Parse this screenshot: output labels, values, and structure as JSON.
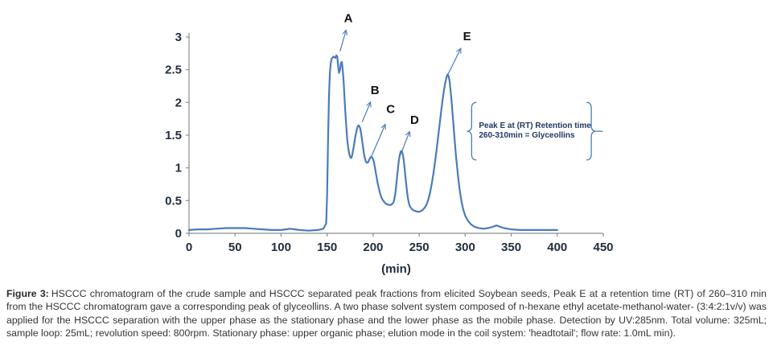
{
  "figure": {
    "caption_label": "Figure 3:",
    "caption_text": "HSCCC chromatogram of the crude sample and HSCCC separated peak fractions from elicited Soybean seeds, Peak E at a retention time (RT) of 260–310 min from the HSCCC chromatogram gave a corresponding peak of glyceollins. A two phase solvent system composed of n-hexane ethyl acetate-methanol-water- (3:4:2:1v/v) was applied for the HSCCC separation with the upper phase as the stationary phase and the lower phase as the mobile phase. Detection by UV:285nm. Total volume: 325mL; sample loop: 25mL; revolution speed: 800rpm. Stationary phase: upper organic phase; elution mode in the coil system: 'headtotail'; flow rate: 1.0mL min)."
  },
  "chart_data": {
    "type": "line",
    "title": "",
    "xlabel": "(min)",
    "ylabel": "",
    "xlim": [
      0,
      450
    ],
    "ylim": [
      0,
      3
    ],
    "xticks": [
      0,
      50,
      100,
      150,
      200,
      250,
      300,
      350,
      400,
      450
    ],
    "yticks": [
      0,
      0.5,
      1,
      1.5,
      2,
      2.5,
      3
    ],
    "grid": false,
    "legend": "none",
    "line_color": "#4a7cba",
    "axis_color": "#8c8c8c",
    "tick_label_color": "#1f2d3d",
    "annotation_text_color": "#1f3864",
    "series": [
      {
        "points": [
          [
            0,
            0.05
          ],
          [
            10,
            0.06
          ],
          [
            20,
            0.06
          ],
          [
            30,
            0.07
          ],
          [
            40,
            0.08
          ],
          [
            50,
            0.08
          ],
          [
            60,
            0.08
          ],
          [
            70,
            0.07
          ],
          [
            80,
            0.06
          ],
          [
            90,
            0.05
          ],
          [
            100,
            0.05
          ],
          [
            105,
            0.06
          ],
          [
            110,
            0.07
          ],
          [
            115,
            0.06
          ],
          [
            120,
            0.05
          ],
          [
            130,
            0.04
          ],
          [
            140,
            0.05
          ],
          [
            146,
            0.07
          ],
          [
            149,
            0.15
          ],
          [
            150,
            0.6
          ],
          [
            151,
            1.4
          ],
          [
            152,
            2.1
          ],
          [
            153,
            2.45
          ],
          [
            154,
            2.6
          ],
          [
            155,
            2.67
          ],
          [
            157,
            2.7
          ],
          [
            159,
            2.68
          ],
          [
            160,
            2.72
          ],
          [
            161,
            2.7
          ],
          [
            162,
            2.55
          ],
          [
            163,
            2.45
          ],
          [
            164,
            2.5
          ],
          [
            165,
            2.6
          ],
          [
            166,
            2.62
          ],
          [
            167,
            2.5
          ],
          [
            168,
            2.3
          ],
          [
            169,
            2.05
          ],
          [
            170,
            1.8
          ],
          [
            171,
            1.6
          ],
          [
            172,
            1.42
          ],
          [
            173,
            1.3
          ],
          [
            174,
            1.22
          ],
          [
            175,
            1.17
          ],
          [
            176,
            1.15
          ],
          [
            177,
            1.18
          ],
          [
            178,
            1.25
          ],
          [
            179,
            1.33
          ],
          [
            180,
            1.42
          ],
          [
            181,
            1.5
          ],
          [
            182,
            1.57
          ],
          [
            183,
            1.62
          ],
          [
            184,
            1.65
          ],
          [
            185,
            1.64
          ],
          [
            186,
            1.6
          ],
          [
            187,
            1.52
          ],
          [
            188,
            1.42
          ],
          [
            189,
            1.32
          ],
          [
            190,
            1.22
          ],
          [
            191,
            1.15
          ],
          [
            192,
            1.1
          ],
          [
            193,
            1.08
          ],
          [
            194,
            1.08
          ],
          [
            195,
            1.1
          ],
          [
            196,
            1.13
          ],
          [
            197,
            1.16
          ],
          [
            198,
            1.17
          ],
          [
            199,
            1.16
          ],
          [
            200,
            1.13
          ],
          [
            201,
            1.08
          ],
          [
            202,
            1.0
          ],
          [
            203,
            0.92
          ],
          [
            204,
            0.84
          ],
          [
            205,
            0.76
          ],
          [
            206,
            0.7
          ],
          [
            207,
            0.64
          ],
          [
            208,
            0.59
          ],
          [
            209,
            0.55
          ],
          [
            210,
            0.52
          ],
          [
            212,
            0.48
          ],
          [
            214,
            0.45
          ],
          [
            216,
            0.44
          ],
          [
            218,
            0.43
          ],
          [
            220,
            0.44
          ],
          [
            222,
            0.47
          ],
          [
            223,
            0.52
          ],
          [
            224,
            0.6
          ],
          [
            225,
            0.72
          ],
          [
            226,
            0.86
          ],
          [
            227,
            1.0
          ],
          [
            228,
            1.12
          ],
          [
            229,
            1.2
          ],
          [
            230,
            1.25
          ],
          [
            231,
            1.26
          ],
          [
            232,
            1.22
          ],
          [
            233,
            1.14
          ],
          [
            234,
            1.02
          ],
          [
            235,
            0.88
          ],
          [
            236,
            0.74
          ],
          [
            237,
            0.62
          ],
          [
            238,
            0.52
          ],
          [
            239,
            0.45
          ],
          [
            240,
            0.41
          ],
          [
            242,
            0.37
          ],
          [
            244,
            0.35
          ],
          [
            246,
            0.34
          ],
          [
            248,
            0.33
          ],
          [
            250,
            0.33
          ],
          [
            252,
            0.34
          ],
          [
            254,
            0.36
          ],
          [
            256,
            0.39
          ],
          [
            258,
            0.44
          ],
          [
            260,
            0.52
          ],
          [
            262,
            0.63
          ],
          [
            264,
            0.78
          ],
          [
            266,
            0.96
          ],
          [
            268,
            1.17
          ],
          [
            270,
            1.4
          ],
          [
            272,
            1.64
          ],
          [
            274,
            1.88
          ],
          [
            276,
            2.1
          ],
          [
            278,
            2.28
          ],
          [
            280,
            2.4
          ],
          [
            281,
            2.43
          ],
          [
            282,
            2.4
          ],
          [
            283,
            2.33
          ],
          [
            284,
            2.2
          ],
          [
            285,
            2.05
          ],
          [
            286,
            1.88
          ],
          [
            287,
            1.7
          ],
          [
            288,
            1.52
          ],
          [
            290,
            1.18
          ],
          [
            292,
            0.9
          ],
          [
            294,
            0.66
          ],
          [
            296,
            0.48
          ],
          [
            298,
            0.36
          ],
          [
            300,
            0.27
          ],
          [
            303,
            0.19
          ],
          [
            306,
            0.14
          ],
          [
            310,
            0.1
          ],
          [
            315,
            0.08
          ],
          [
            320,
            0.07
          ],
          [
            325,
            0.08
          ],
          [
            330,
            0.1
          ],
          [
            334,
            0.12
          ],
          [
            338,
            0.1
          ],
          [
            342,
            0.08
          ],
          [
            346,
            0.07
          ],
          [
            350,
            0.06
          ],
          [
            360,
            0.05
          ],
          [
            370,
            0.05
          ],
          [
            380,
            0.05
          ],
          [
            390,
            0.05
          ],
          [
            400,
            0.05
          ]
        ]
      }
    ],
    "peak_labels": [
      {
        "label": "A",
        "text_x": 173,
        "text_y": 3.23,
        "arrow_from": [
          164,
          2.78
        ],
        "arrow_to": [
          170.5,
          3.1
        ]
      },
      {
        "label": "B",
        "text_x": 202,
        "text_y": 2.13,
        "arrow_from": [
          188,
          1.7
        ],
        "arrow_to": [
          197,
          2.0
        ]
      },
      {
        "label": "C",
        "text_x": 219,
        "text_y": 1.84,
        "arrow_from": [
          198,
          1.17
        ],
        "arrow_to": [
          213,
          1.66
        ]
      },
      {
        "label": "D",
        "text_x": 245,
        "text_y": 1.67,
        "arrow_from": [
          228,
          1.14
        ],
        "arrow_to": [
          239.5,
          1.55
        ]
      },
      {
        "label": "E",
        "text_x": 302,
        "text_y": 2.95,
        "arrow_from": [
          281,
          2.42
        ],
        "arrow_to": [
          295,
          2.82
        ]
      }
    ],
    "bracket_annotation": {
      "lines": [
        "Peak E at (RT) Retention time",
        "260-310min = Glyceollins"
      ],
      "x_left": 307,
      "x_right": 437,
      "y_top": 2.0,
      "y_bottom": 1.12
    }
  }
}
